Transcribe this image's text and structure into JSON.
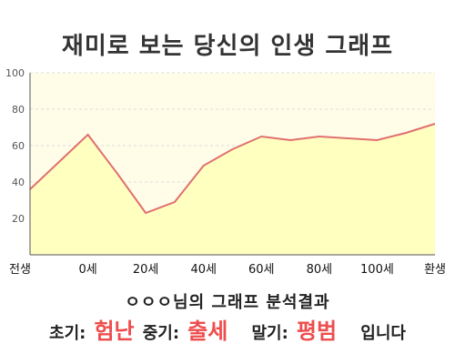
{
  "title": "재미로 보는 당신의 인생 그래프",
  "summary": {
    "heading": "ㅇㅇㅇ님의 그래프 분석결과",
    "early_label": "초기:",
    "early_value": "험난",
    "mid_label": "중기:",
    "mid_value": "출세",
    "late_label": "말기:",
    "late_value": "평범",
    "suffix": "입니다"
  },
  "colors": {
    "line": "#e07070",
    "fill": "#ffffbf",
    "plot_background": "#fffde8",
    "grid": "#dddddd",
    "highlight": "#ee4d4d"
  },
  "chart_data": {
    "type": "area",
    "title": "",
    "xlabel": "",
    "ylabel": "",
    "ylim": [
      0,
      100
    ],
    "yticks": [
      20,
      40,
      60,
      80,
      100
    ],
    "x_categories": [
      "전생",
      "0세",
      "20세",
      "40세",
      "60세",
      "80세",
      "100세",
      "환생"
    ],
    "x": [
      0,
      0.5,
      1,
      1.5,
      2,
      2.5,
      3,
      3.5,
      4,
      4.5,
      5,
      5.5,
      6,
      6.5,
      7
    ],
    "values": [
      36,
      51,
      66,
      45,
      23,
      29,
      49,
      58,
      65,
      63,
      65,
      64,
      63,
      67,
      72
    ],
    "grid": true,
    "legend": "none"
  }
}
